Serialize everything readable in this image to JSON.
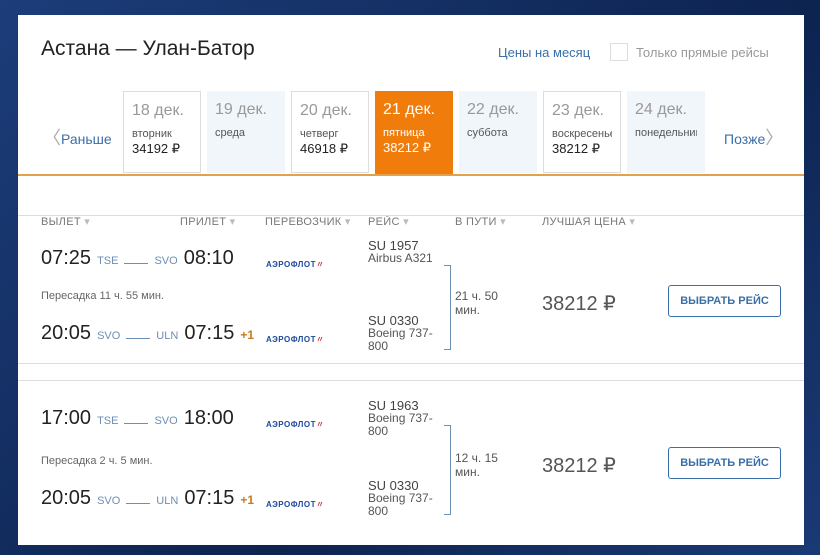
{
  "title": "Астана — Улан-Батор",
  "month_prices": "Цены на месяц",
  "direct_only": "Только прямые рейсы",
  "earlier": "Раньше",
  "later": "Позже",
  "days": [
    {
      "date": "18 дек.",
      "weekday": "вторник",
      "price": "34192 ₽"
    },
    {
      "date": "19 дек.",
      "weekday": "среда",
      "price": ""
    },
    {
      "date": "20 дек.",
      "weekday": "четверг",
      "price": "46918 ₽"
    },
    {
      "date": "21 дек.",
      "weekday": "пятница",
      "price": "38212 ₽",
      "selected": true
    },
    {
      "date": "22 дек.",
      "weekday": "суббота",
      "price": ""
    },
    {
      "date": "23 дек.",
      "weekday": "воскресенье",
      "price": "38212 ₽"
    },
    {
      "date": "24 дек.",
      "weekday": "понедельник",
      "price": ""
    }
  ],
  "headers": [
    "ВЫЛЕТ",
    "ПРИЛЕТ",
    "ПЕРЕВОЗЧИК",
    "РЕЙС",
    "В ПУТИ",
    "ЛУЧШАЯ ЦЕНА"
  ],
  "accent": "#f07c0c",
  "results": [
    {
      "segments": [
        {
          "dep": "07:25",
          "from": "TSE",
          "to": "SVO",
          "arr": "08:10",
          "plus": "",
          "airline": "АЭРОФЛОТ",
          "flight": "SU 1957",
          "aircraft": "Airbus A321"
        },
        {
          "dep": "20:05",
          "from": "SVO",
          "to": "ULN",
          "arr": "07:15",
          "plus": "+1",
          "airline": "АЭРОФЛОТ",
          "flight": "SU 0330",
          "aircraft": "Boeing 737-800"
        }
      ],
      "transfer": "Пересадка 11 ч. 55 мин.",
      "duration": "21 ч. 50 мин.",
      "price": "38212 ₽",
      "button": "ВЫБРАТЬ РЕЙС"
    },
    {
      "segments": [
        {
          "dep": "17:00",
          "from": "TSE",
          "to": "SVO",
          "arr": "18:00",
          "plus": "",
          "airline": "АЭРОФЛОТ",
          "flight": "SU 1963",
          "aircraft": "Boeing 737-800"
        },
        {
          "dep": "20:05",
          "from": "SVO",
          "to": "ULN",
          "arr": "07:15",
          "plus": "+1",
          "airline": "АЭРОФЛОТ",
          "flight": "SU 0330",
          "aircraft": "Boeing 737-800"
        }
      ],
      "transfer": "Пересадка 2 ч. 5 мин.",
      "duration": "12 ч. 15 мин.",
      "price": "38212 ₽",
      "button": "ВЫБРАТЬ РЕЙС"
    }
  ]
}
